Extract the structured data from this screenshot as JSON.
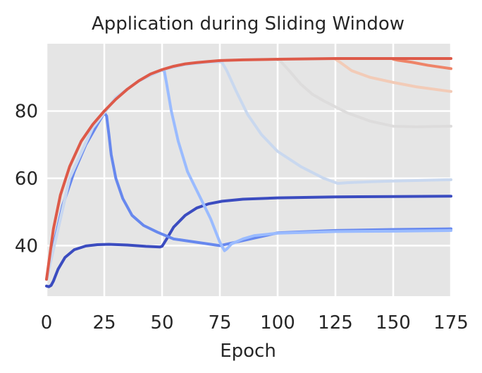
{
  "chart_data": {
    "type": "line",
    "title": "Application during Sliding Window",
    "xlabel": "Epoch",
    "ylabel": "",
    "xlim": [
      0,
      175
    ],
    "ylim": [
      25,
      100
    ],
    "xticks": [
      0,
      25,
      50,
      75,
      100,
      125,
      150,
      175
    ],
    "yticks": [
      40,
      60,
      80
    ],
    "grid": true,
    "background": "#e5e5e5",
    "grid_color": "#ffffff",
    "legend": "none",
    "series": [
      {
        "color": "#3b4cc0",
        "points": [
          [
            0,
            28
          ],
          [
            1,
            27.8
          ],
          [
            2,
            28.2
          ],
          [
            3,
            29.5
          ],
          [
            5,
            33
          ],
          [
            8,
            36.5
          ],
          [
            12,
            38.8
          ],
          [
            17,
            39.9
          ],
          [
            22,
            40.3
          ],
          [
            27,
            40.4
          ],
          [
            35,
            40.2
          ],
          [
            43,
            39.8
          ],
          [
            49,
            39.6
          ],
          [
            50,
            39.8
          ],
          [
            52,
            42
          ],
          [
            55,
            45.5
          ],
          [
            60,
            49
          ],
          [
            65,
            51.2
          ],
          [
            70,
            52.4
          ],
          [
            76,
            53.2
          ],
          [
            85,
            53.8
          ],
          [
            100,
            54.2
          ],
          [
            125,
            54.5
          ],
          [
            150,
            54.6
          ],
          [
            175,
            54.7
          ]
        ]
      },
      {
        "color": "#6788ee",
        "points": [
          [
            0,
            30
          ],
          [
            3,
            40
          ],
          [
            7,
            52
          ],
          [
            12,
            62
          ],
          [
            17,
            70
          ],
          [
            22,
            76
          ],
          [
            25,
            79.5
          ],
          [
            26,
            78.5
          ],
          [
            27,
            73
          ],
          [
            28,
            67
          ],
          [
            30,
            60
          ],
          [
            33,
            54
          ],
          [
            37,
            49
          ],
          [
            42,
            46
          ],
          [
            48,
            44
          ],
          [
            55,
            42
          ],
          [
            65,
            41
          ],
          [
            75,
            40
          ],
          [
            100,
            43.8
          ],
          [
            125,
            44.5
          ],
          [
            150,
            44.8
          ],
          [
            175,
            45
          ]
        ]
      },
      {
        "color": "#9abbff",
        "points": [
          [
            0,
            30
          ],
          [
            10,
            60
          ],
          [
            20,
            75
          ],
          [
            30,
            84
          ],
          [
            40,
            89
          ],
          [
            50,
            92.2
          ],
          [
            51,
            91.8
          ],
          [
            52,
            88
          ],
          [
            54,
            80
          ],
          [
            57,
            71
          ],
          [
            61,
            62
          ],
          [
            66,
            55
          ],
          [
            71,
            48
          ],
          [
            75,
            41
          ],
          [
            77,
            38.5
          ],
          [
            78,
            39
          ],
          [
            80,
            40.5
          ],
          [
            85,
            42
          ],
          [
            90,
            43
          ],
          [
            100,
            43.7
          ],
          [
            125,
            44.2
          ],
          [
            150,
            44.3
          ],
          [
            175,
            44.5
          ]
        ]
      },
      {
        "color": "#c9d8ef",
        "points": [
          [
            0,
            30
          ],
          [
            10,
            60
          ],
          [
            20,
            75
          ],
          [
            30,
            84
          ],
          [
            40,
            89
          ],
          [
            50,
            92.2
          ],
          [
            60,
            93.8
          ],
          [
            70,
            94.5
          ],
          [
            75,
            94.6
          ],
          [
            76,
            94.4
          ],
          [
            78,
            92
          ],
          [
            82,
            86
          ],
          [
            87,
            79
          ],
          [
            93,
            73
          ],
          [
            100,
            68
          ],
          [
            110,
            63.5
          ],
          [
            120,
            60
          ],
          [
            126,
            58.5
          ],
          [
            130,
            58.7
          ],
          [
            140,
            59
          ],
          [
            150,
            59.2
          ],
          [
            175,
            59.6
          ]
        ]
      },
      {
        "color": "#dddcdc",
        "points": [
          [
            100,
            95.2
          ],
          [
            101,
            95
          ],
          [
            105,
            92
          ],
          [
            110,
            88
          ],
          [
            115,
            85
          ],
          [
            120,
            83
          ],
          [
            130,
            79.5
          ],
          [
            140,
            77
          ],
          [
            150,
            75.5
          ],
          [
            160,
            75.3
          ],
          [
            175,
            75.5
          ]
        ]
      },
      {
        "color": "#f2cbb7",
        "points": [
          [
            125,
            95.4
          ],
          [
            127,
            94.5
          ],
          [
            132,
            92
          ],
          [
            140,
            90
          ],
          [
            150,
            88.5
          ],
          [
            160,
            87.2
          ],
          [
            175,
            85.8
          ]
        ]
      },
      {
        "color": "#ee8468",
        "points": [
          [
            150,
            95.4
          ],
          [
            152,
            95.1
          ],
          [
            158,
            94.5
          ],
          [
            165,
            93.6
          ],
          [
            175,
            92.6
          ]
        ]
      },
      {
        "color": "#dd5a49",
        "points": [
          [
            0,
            30
          ],
          [
            3,
            45
          ],
          [
            6,
            55
          ],
          [
            10,
            63.5
          ],
          [
            15,
            71
          ],
          [
            20,
            76
          ],
          [
            25,
            80
          ],
          [
            30,
            83.5
          ],
          [
            35,
            86.5
          ],
          [
            40,
            89
          ],
          [
            45,
            91
          ],
          [
            50,
            92.3
          ],
          [
            55,
            93.3
          ],
          [
            60,
            94
          ],
          [
            65,
            94.4
          ],
          [
            70,
            94.7
          ],
          [
            75,
            95
          ],
          [
            85,
            95.2
          ],
          [
            100,
            95.4
          ],
          [
            125,
            95.6
          ],
          [
            150,
            95.6
          ],
          [
            175,
            95.6
          ]
        ]
      }
    ]
  }
}
